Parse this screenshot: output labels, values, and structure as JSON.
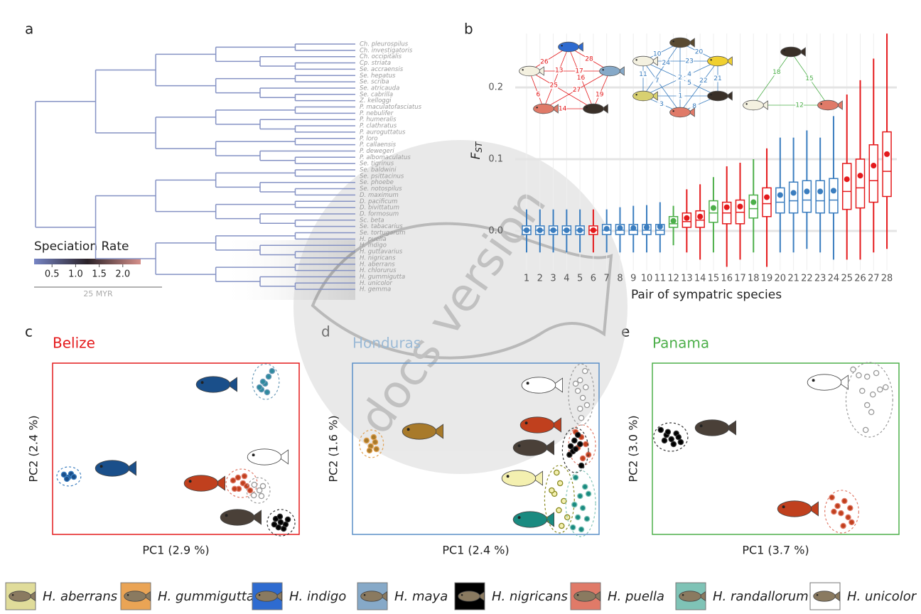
{
  "panel_labels": [
    "a",
    "b",
    "c",
    "d",
    "e"
  ],
  "tree": {
    "tips": [
      "Ch. pleurospilus",
      "Ch. investigatoris",
      "Ch. occipitalis",
      "Cp. striata",
      "Se. accraensis",
      "Se. hepatus",
      "Se. scriba",
      "Se. atricauda",
      "Se. cabrilla",
      "Z. kelloggi",
      "P. maculatofasciatus",
      "P. nebulifer",
      "P. humeralis",
      "P. clathratus",
      "P. auroguttatus",
      "P. loro",
      "P. callaensis",
      "P. dewegeri",
      "P. albomaculatus",
      "Se. tigrinus",
      "Se. baldwini",
      "Se. psittacinus",
      "Se. phoebe",
      "Se. notospilus",
      "D. maximum",
      "D. pacificum",
      "D. bivittatum",
      "D. formosum",
      "Sc. beta",
      "Se. tabacarius",
      "Se. tortugarum",
      "H. puella",
      "H. indigo",
      "H. guttavarius",
      "H. nigricans",
      "H. aberrans",
      "H. chlorurus",
      "H. gummigutta",
      "H. unicolor",
      "H. gemma"
    ],
    "branch_color": "#8592c4",
    "colorbar": {
      "title": "Speciation Rate",
      "lim": [
        0.12,
        2.38
      ],
      "colors": [
        "#7684c4",
        "#2a2228",
        "#d6908a"
      ],
      "ticks": [
        0.5,
        {
          "value": 1,
          "label": "1.0"
        },
        1.5,
        {
          "value": 2,
          "label": "2.0"
        }
      ]
    },
    "scale_bar": "25 MYR"
  },
  "networks": [
    {
      "color": "#e41a1c",
      "labels": [
        26,
        28,
        17,
        25,
        27,
        6,
        13,
        16,
        19,
        14
      ]
    },
    {
      "color": "#3a7dbf",
      "labels": [
        10,
        20,
        5,
        24,
        2,
        4,
        11,
        21,
        23,
        22,
        1,
        8,
        7,
        3
      ]
    },
    {
      "color": "#4daf4a",
      "labels": [
        18,
        15,
        12
      ]
    }
  ],
  "chart_data": [
    {
      "type": "box",
      "y_label": "F",
      "y_label_sub": "ST",
      "x_label": "Pair of sympatric species",
      "categories": [
        1,
        2,
        3,
        4,
        5,
        6,
        7,
        8,
        9,
        10,
        11,
        12,
        13,
        14,
        15,
        16,
        17,
        18,
        19,
        20,
        21,
        22,
        23,
        24,
        25,
        26,
        27,
        28
      ],
      "colors": [
        "#3a7dbf",
        "#3a7dbf",
        "#3a7dbf",
        "#3a7dbf",
        "#3a7dbf",
        "#e41a1c",
        "#3a7dbf",
        "#3a7dbf",
        "#3a7dbf",
        "#3a7dbf",
        "#3a7dbf",
        "#4daf4a",
        "#e41a1c",
        "#e41a1c",
        "#4daf4a",
        "#e41a1c",
        "#e41a1c",
        "#4daf4a",
        "#e41a1c",
        "#3a7dbf",
        "#3a7dbf",
        "#3a7dbf",
        "#3a7dbf",
        "#3a7dbf",
        "#e41a1c",
        "#e41a1c",
        "#e41a1c",
        "#e41a1c"
      ],
      "whisker_low": [
        -0.03,
        -0.03,
        -0.03,
        -0.03,
        -0.03,
        -0.03,
        -0.03,
        -0.03,
        -0.03,
        -0.03,
        -0.03,
        -0.02,
        -0.03,
        -0.04,
        -0.03,
        -0.05,
        -0.04,
        -0.03,
        -0.05,
        -0.03,
        -0.03,
        -0.025,
        -0.03,
        -0.04,
        -0.04,
        -0.04,
        -0.03,
        -0.025
      ],
      "q1": [
        -0.005,
        -0.005,
        -0.005,
        -0.005,
        -0.005,
        -0.005,
        -0.005,
        -0.005,
        -0.005,
        -0.005,
        -0.005,
        0.005,
        0.005,
        0.005,
        0.012,
        0.01,
        0.01,
        0.018,
        0.02,
        0.025,
        0.025,
        0.026,
        0.025,
        0.025,
        0.03,
        0.032,
        0.04,
        0.048
      ],
      "median": [
        0.001,
        0.001,
        0.001,
        0.001,
        0.001,
        0.001,
        0.001,
        0.001,
        0.001,
        0.001,
        0.001,
        0.01,
        0.013,
        0.015,
        0.025,
        0.025,
        0.026,
        0.031,
        0.038,
        0.04,
        0.042,
        0.043,
        0.042,
        0.043,
        0.055,
        0.06,
        0.07,
        0.083
      ],
      "q3": [
        0.007,
        0.007,
        0.007,
        0.007,
        0.007,
        0.007,
        0.009,
        0.009,
        0.009,
        0.009,
        0.009,
        0.02,
        0.025,
        0.028,
        0.042,
        0.04,
        0.043,
        0.05,
        0.06,
        0.06,
        0.068,
        0.07,
        0.07,
        0.073,
        0.094,
        0.1,
        0.12,
        0.138
      ],
      "whisker_high": [
        0.03,
        0.03,
        0.03,
        0.03,
        0.03,
        0.03,
        0.03,
        0.033,
        0.035,
        0.036,
        0.04,
        0.035,
        0.058,
        0.065,
        0.075,
        0.09,
        0.095,
        0.1,
        0.115,
        0.13,
        0.13,
        0.14,
        0.13,
        0.16,
        0.19,
        0.21,
        0.24,
        0.275
      ],
      "mean": [
        0.001,
        0.001,
        0.001,
        0.001,
        0.001,
        0.001,
        0.003,
        0.004,
        0.004,
        0.005,
        0.006,
        0.014,
        0.018,
        0.02,
        0.032,
        0.033,
        0.034,
        0.04,
        0.047,
        0.05,
        0.053,
        0.055,
        0.055,
        0.056,
        0.072,
        0.077,
        0.091,
        0.107
      ],
      "ylim": [
        -0.055,
        0.275
      ],
      "yticks": [
        {
          "value": 0,
          "label": "0.0"
        },
        0.1,
        0.2
      ],
      "grid": true
    },
    {
      "type": "scatter",
      "title": "Belize",
      "title_color": "#e41a1c",
      "frame_color": "#e41a1c",
      "x_label": "PC1 (2.9 %)",
      "y_label": "PC2 (2.4 %)",
      "xlim": [
        0,
        100
      ],
      "ylim": [
        0,
        100
      ],
      "series": [
        {
          "name": "H. indigo",
          "color": "#1a4f8a",
          "edge": "#3a7dbf",
          "x": [
            4.6,
            6.3,
            7.5,
            8.6,
            5.8
          ],
          "values": [
            34.9,
            33.2,
            35.3,
            33.6,
            32.4
          ]
        },
        {
          "name": "H. maya",
          "color": "#2f8a9e",
          "edge": "#6a9ab8",
          "x": [
            84.7,
            86.2,
            87.6,
            89.0,
            83.9,
            87.0,
            85.3
          ],
          "values": [
            84.6,
            88.0,
            92.1,
            95.4,
            85.9,
            83.0,
            89.2
          ]
        },
        {
          "name": "H. puella",
          "color": "#c0401e",
          "edge": "#e07a68",
          "x": [
            73.2,
            75.2,
            77.2,
            75.5,
            78.7,
            73.8,
            77.8,
            80.1
          ],
          "values": [
            31.5,
            33.2,
            29.9,
            26.6,
            28.2,
            26.6,
            34.0,
            25.7
          ]
        },
        {
          "name": "H. unicolor",
          "color": "#ffffff",
          "edge": "#999999",
          "x": [
            81.8,
            83.9,
            85.3,
            81.6,
            84.7
          ],
          "values": [
            29.0,
            25.7,
            28.2,
            22.8,
            22.4
          ]
        },
        {
          "name": "H. nigricans",
          "color": "#000000",
          "edge": "#333333",
          "x": [
            90.5,
            92.5,
            94.5,
            91.6,
            93.7,
            89.9,
            95.4,
            92.2
          ],
          "values": [
            9.1,
            7.1,
            5.8,
            4.1,
            3.3,
            5.8,
            8.7,
            10.4
          ]
        }
      ]
    },
    {
      "type": "scatter",
      "title": "Honduras",
      "title_color": "#9bbad6",
      "frame_color": "#5b8fc7",
      "x_label": "PC1 (2.4 %)",
      "y_label": "PC2 (1.6 %)",
      "xlim": [
        0,
        100
      ],
      "ylim": [
        0,
        100
      ],
      "series": [
        {
          "name": "H. gummigutta",
          "color": "#a87a2a",
          "edge": "#e0a050",
          "x": [
            5.7,
            7.4,
            9.2,
            6.9,
            8.6,
            9.7
          ],
          "values": [
            54.8,
            51.5,
            53.9,
            49.0,
            56.8,
            49.8
          ]
        },
        {
          "name": "H. unicolor",
          "color": "#ffffff",
          "edge": "#999999",
          "x": [
            94.3,
            92.3,
            94.6,
            91.4,
            93.4,
            90.5,
            95.1,
            92.3,
            92.8
          ],
          "values": [
            95.4,
            90.0,
            85.9,
            83.8,
            79.7,
            88.0,
            75.5,
            73.4,
            68.0
          ]
        },
        {
          "name": "H. puella",
          "color": "#c0401e",
          "edge": "#e07a68",
          "x": [
            90.5,
            92.8,
            94.6,
            91.4,
            95.7,
            93.4
          ],
          "values": [
            59.8,
            56.8,
            52.7,
            50.6,
            46.5,
            44.4
          ]
        },
        {
          "name": "H. nigricans",
          "color": "#000000",
          "edge": "#333333",
          "x": [
            88.5,
            90.0,
            91.4,
            89.4,
            92.3,
            88.0,
            90.5,
            92.8
          ],
          "values": [
            51.5,
            54.8,
            58.1,
            48.5,
            52.7,
            46.5,
            49.8,
            40.2
          ]
        },
        {
          "name": "H. aberrans",
          "color": "#f4f0b0",
          "edge": "#8a8a20",
          "x": [
            82.8,
            84.2,
            81.9,
            85.7,
            83.7,
            87.1,
            84.8,
            80.8
          ],
          "values": [
            36.1,
            29.9,
            23.7,
            19.5,
            14.1,
            10.0,
            5.0,
            25.7
          ]
        },
        {
          "name": "H. randallorum",
          "color": "#1a8a80",
          "edge": "#7fc3b6",
          "x": [
            90.5,
            94.3,
            92.3,
            95.7,
            90.0,
            93.4,
            91.4,
            95.1,
            89.4,
            92.8
          ],
          "values": [
            33.2,
            27.8,
            22.4,
            23.7,
            17.4,
            15.4,
            10.0,
            9.1,
            4.1,
            2.9
          ]
        }
      ]
    },
    {
      "type": "scatter",
      "title": "Panama",
      "title_color": "#4daf4a",
      "frame_color": "#4daf4a",
      "x_label": "PC1 (3.7 %)",
      "y_label": "PC2 (3.0 %)",
      "xlim": [
        0,
        100
      ],
      "ylim": [
        0,
        100
      ],
      "series": [
        {
          "name": "H. nigricans",
          "color": "#000000",
          "edge": "#333333",
          "x": [
            3.4,
            5.7,
            7.7,
            9.7,
            11.5,
            4.9,
            8.6,
            6.3,
            10.6
          ],
          "values": [
            61.0,
            58.1,
            55.6,
            58.9,
            53.9,
            54.8,
            52.7,
            59.8,
            56.8
          ]
        },
        {
          "name": "H. unicolor",
          "color": "#ffffff",
          "edge": "#999999",
          "x": [
            81.4,
            83.7,
            87.1,
            90.8,
            94.6,
            85.1,
            89.4,
            92.3,
            87.1,
            88.8,
            86.5
          ],
          "values": [
            96.3,
            92.9,
            92.1,
            94.2,
            85.9,
            83.8,
            81.7,
            84.6,
            75.5,
            71.4,
            61.0
          ]
        },
        {
          "name": "H. puella",
          "color": "#c0401e",
          "edge": "#e07a68",
          "x": [
            72.8,
            75.1,
            77.9,
            80.2,
            76.5,
            73.6,
            79.4,
            77.4,
            80.8
          ],
          "values": [
            21.6,
            16.6,
            19.5,
            15.4,
            12.4,
            13.3,
            10.0,
            5.0,
            7.1
          ]
        }
      ]
    }
  ],
  "legend": [
    {
      "name": "H. aberrans",
      "color": "#e0dc9a"
    },
    {
      "name": "H. gummigutta",
      "color": "#eaa455"
    },
    {
      "name": "H. indigo",
      "color": "#2e6bd0"
    },
    {
      "name": "H. maya",
      "color": "#86a9c8"
    },
    {
      "name": "H. nigricans",
      "color": "#000000"
    },
    {
      "name": "H. puella",
      "color": "#e07a68"
    },
    {
      "name": "H. randallorum",
      "color": "#7fc3b6"
    },
    {
      "name": "H. unicolor",
      "color": "#ffffff"
    }
  ],
  "watermark": "docs version"
}
